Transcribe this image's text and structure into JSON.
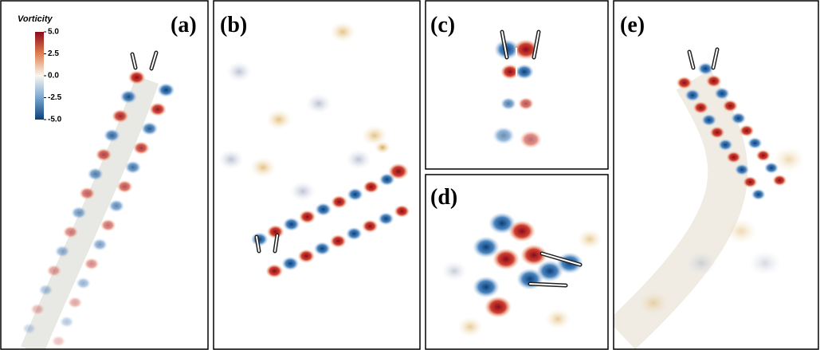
{
  "panels": [
    {
      "label": "(a)"
    },
    {
      "label": "(b)"
    },
    {
      "label": "(c)"
    },
    {
      "label": "(d)"
    },
    {
      "label": "(e)"
    }
  ],
  "colorbar": {
    "title": "Vorticity",
    "ticks": [
      {
        "value": 5,
        "label": "5.0"
      },
      {
        "value": 2.5,
        "label": "2.5"
      },
      {
        "value": 0,
        "label": "0.0"
      },
      {
        "value": -2.5,
        "label": "-2.5"
      },
      {
        "value": -5,
        "label": "-5.0"
      }
    ]
  }
}
